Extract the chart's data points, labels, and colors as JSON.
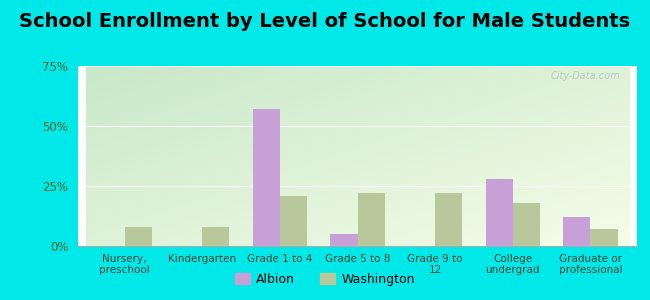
{
  "title": "School Enrollment by Level of School for Male Students",
  "categories": [
    "Nursery,\npreschool",
    "Kindergarten",
    "Grade 1 to 4",
    "Grade 5 to 8",
    "Grade 9 to\n12",
    "College\nundergrad",
    "Graduate or\nprofessional"
  ],
  "albion": [
    0,
    0,
    57,
    5,
    0,
    28,
    12
  ],
  "washington": [
    8,
    8,
    21,
    22,
    22,
    18,
    7
  ],
  "albion_color": "#c8a0d8",
  "washington_color": "#b8c89a",
  "outer_background": "#00e8e8",
  "ylim": [
    0,
    75
  ],
  "yticks": [
    0,
    25,
    50,
    75
  ],
  "ytick_labels": [
    "0%",
    "25%",
    "50%",
    "75%"
  ],
  "legend_albion": "Albion",
  "legend_washington": "Washington",
  "title_fontsize": 14,
  "bar_width": 0.35,
  "grad_top_left": "#c8e8c8",
  "grad_bottom_right": "#f8fff0"
}
